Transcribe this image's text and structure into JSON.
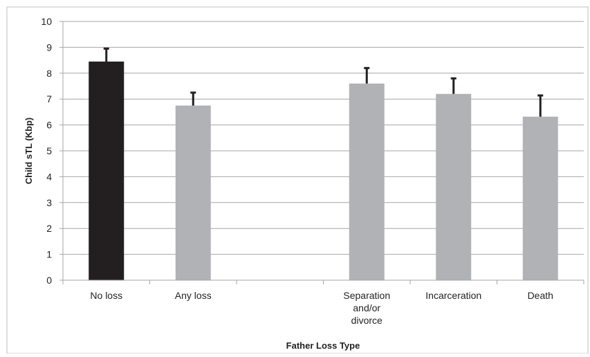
{
  "chart_data": {
    "type": "bar",
    "categories": [
      "No loss",
      "Any loss",
      "",
      "Separation and/or divorce",
      "Incarceration",
      "Death"
    ],
    "category_label_lines": [
      [
        "No loss"
      ],
      [
        "Any loss"
      ],
      [],
      [
        "Separation",
        "and/or",
        "divorce"
      ],
      [
        "Incarceration"
      ],
      [
        "Death"
      ]
    ],
    "values": [
      8.45,
      6.75,
      null,
      7.6,
      7.2,
      6.32
    ],
    "error_plus": [
      0.5,
      0.5,
      null,
      0.6,
      0.6,
      0.82
    ],
    "title": "",
    "xlabel": "Father Loss Type",
    "ylabel": "Child sTL (Kbp)",
    "ylim": [
      0,
      10
    ],
    "yticks": [
      0,
      1,
      2,
      3,
      4,
      5,
      6,
      7,
      8,
      9,
      10
    ],
    "grid": true,
    "legend": "none",
    "colors": {
      "highlight": "#231f20",
      "bar": "#b1b2b5",
      "error": "#231f20",
      "grid": "#a6a6a6",
      "axis": "#a6a6a6",
      "frame": "#bfbfbf"
    },
    "bar_colors": [
      "#231f20",
      "#b1b2b5",
      null,
      "#b1b2b5",
      "#b1b2b5",
      "#b1b2b5"
    ]
  }
}
